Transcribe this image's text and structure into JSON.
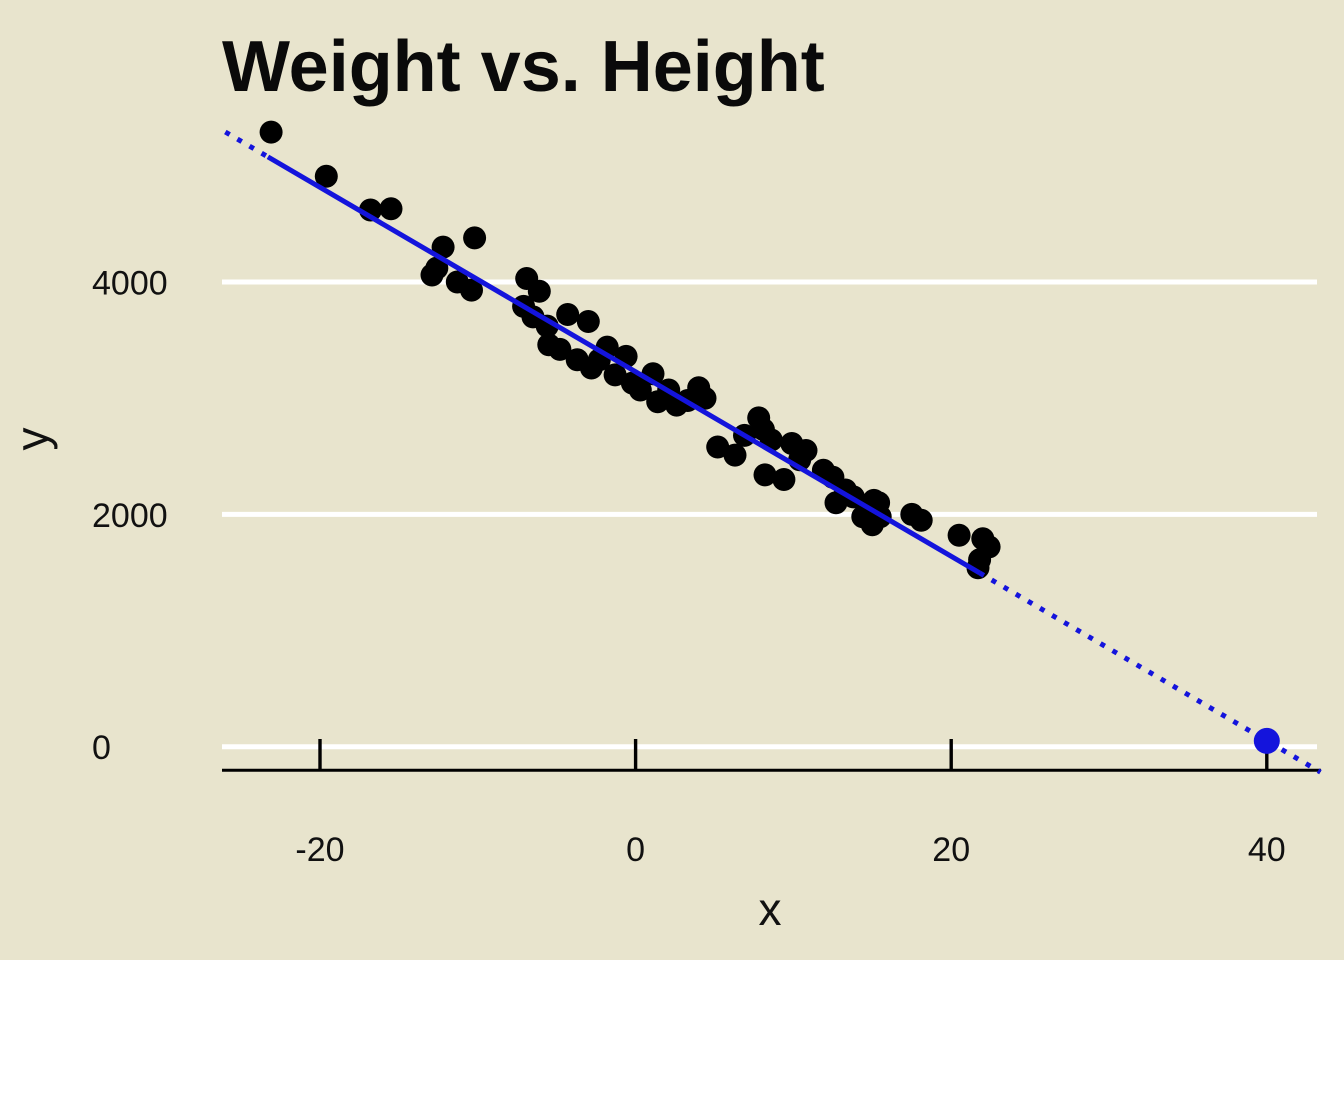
{
  "title": "Weight vs. Height",
  "chart_data": {
    "type": "scatter",
    "title": "Weight vs. Height",
    "xlabel": "x",
    "ylabel": "y",
    "x_ticks": [
      -20,
      0,
      20,
      40
    ],
    "y_ticks": [
      0,
      2000,
      4000
    ],
    "xlim": [
      -26.5,
      43.5
    ],
    "ylim": [
      -230,
      5600
    ],
    "grid": "horizontal white lines at y ticks only",
    "legend": "none",
    "colors": {
      "background": "#E8E4CD",
      "point": "#000000",
      "line": "#1414DC",
      "highlight_point": "#1414DC",
      "gridline": "#FFFFFF",
      "axis": "#000000",
      "text": "#111111"
    },
    "points": [
      [
        -23.1,
        5290
      ],
      [
        -19.6,
        4910
      ],
      [
        -16.8,
        4620
      ],
      [
        -15.5,
        4630
      ],
      [
        -12.9,
        4060
      ],
      [
        -12.6,
        4120
      ],
      [
        -12.2,
        4300
      ],
      [
        -11.3,
        4000
      ],
      [
        -10.4,
        3930
      ],
      [
        -10.2,
        4380
      ],
      [
        -7.1,
        3790
      ],
      [
        -6.9,
        4030
      ],
      [
        -6.5,
        3700
      ],
      [
        -6.1,
        3920
      ],
      [
        -5.6,
        3620
      ],
      [
        -5.5,
        3460
      ],
      [
        -4.8,
        3420
      ],
      [
        -4.3,
        3720
      ],
      [
        -3.7,
        3330
      ],
      [
        -3.0,
        3660
      ],
      [
        -2.8,
        3260
      ],
      [
        -2.3,
        3330
      ],
      [
        -1.8,
        3440
      ],
      [
        -1.3,
        3200
      ],
      [
        -0.6,
        3360
      ],
      [
        -0.2,
        3130
      ],
      [
        0.3,
        3070
      ],
      [
        1.1,
        3210
      ],
      [
        1.4,
        2970
      ],
      [
        2.1,
        3070
      ],
      [
        2.6,
        2940
      ],
      [
        3.3,
        2980
      ],
      [
        4.0,
        3090
      ],
      [
        4.4,
        3000
      ],
      [
        5.2,
        2580
      ],
      [
        6.3,
        2510
      ],
      [
        6.9,
        2680
      ],
      [
        7.8,
        2830
      ],
      [
        8.1,
        2730
      ],
      [
        8.2,
        2340
      ],
      [
        8.6,
        2640
      ],
      [
        9.4,
        2300
      ],
      [
        9.9,
        2610
      ],
      [
        10.4,
        2470
      ],
      [
        10.8,
        2550
      ],
      [
        11.9,
        2380
      ],
      [
        12.5,
        2320
      ],
      [
        12.7,
        2100
      ],
      [
        13.3,
        2210
      ],
      [
        13.8,
        2150
      ],
      [
        14.4,
        1980
      ],
      [
        15.0,
        1910
      ],
      [
        15.1,
        2120
      ],
      [
        15.4,
        2100
      ],
      [
        15.5,
        1980
      ],
      [
        17.5,
        2000
      ],
      [
        18.1,
        1950
      ],
      [
        20.5,
        1820
      ],
      [
        21.7,
        1540
      ],
      [
        21.8,
        1610
      ],
      [
        22.0,
        1790
      ],
      [
        22.4,
        1720
      ]
    ],
    "trend_line": {
      "slope": -79.4,
      "intercept": 3227,
      "solid_x_range": [
        -23.3,
        21.8
      ],
      "dotted_x_ranges": [
        [
          -26.0,
          -23.3
        ],
        [
          21.8,
          43.4
        ]
      ]
    },
    "highlight_point": {
      "x": 40,
      "y": 50
    }
  }
}
